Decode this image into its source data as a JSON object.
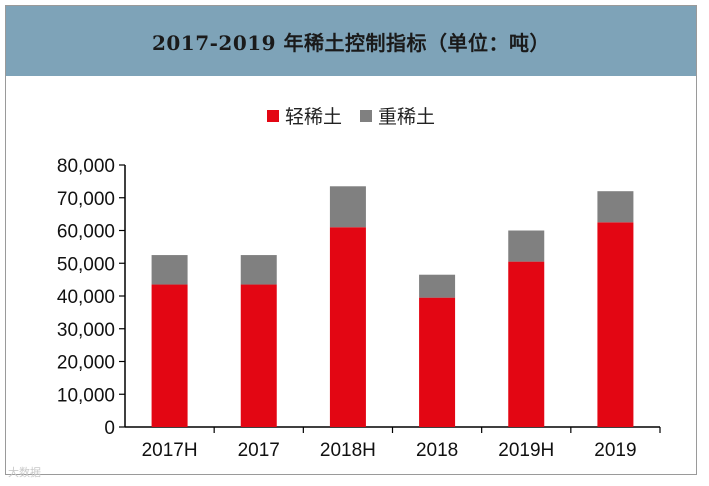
{
  "header": {
    "title": "2017-2019 年稀土控制指标（单位：吨）"
  },
  "watermark": "大数据",
  "colors": {
    "header_bg": "#7ea3b8",
    "light": "#e30613",
    "heavy": "#808080"
  },
  "chart_data": {
    "type": "bar",
    "stacked": true,
    "title": "2017-2019 年稀土控制指标（单位：吨）",
    "categories": [
      "2017H",
      "2017",
      "2018H",
      "2018",
      "2019H",
      "2019"
    ],
    "series": [
      {
        "name": "轻稀土",
        "values": [
          43500,
          43500,
          61000,
          39500,
          50500,
          62500
        ],
        "color": "#e30613"
      },
      {
        "name": "重稀土",
        "values": [
          9000,
          9000,
          12500,
          7000,
          9500,
          9500
        ],
        "color": "#808080"
      }
    ],
    "ylim": [
      0,
      80000
    ],
    "yticks": [
      "0",
      "10,000",
      "20,000",
      "30,000",
      "40,000",
      "50,000",
      "60,000",
      "70,000",
      "80,000"
    ],
    "ytick_values": [
      0,
      10000,
      20000,
      30000,
      40000,
      50000,
      60000,
      70000,
      80000
    ],
    "legend_position": "top",
    "grid": false
  }
}
